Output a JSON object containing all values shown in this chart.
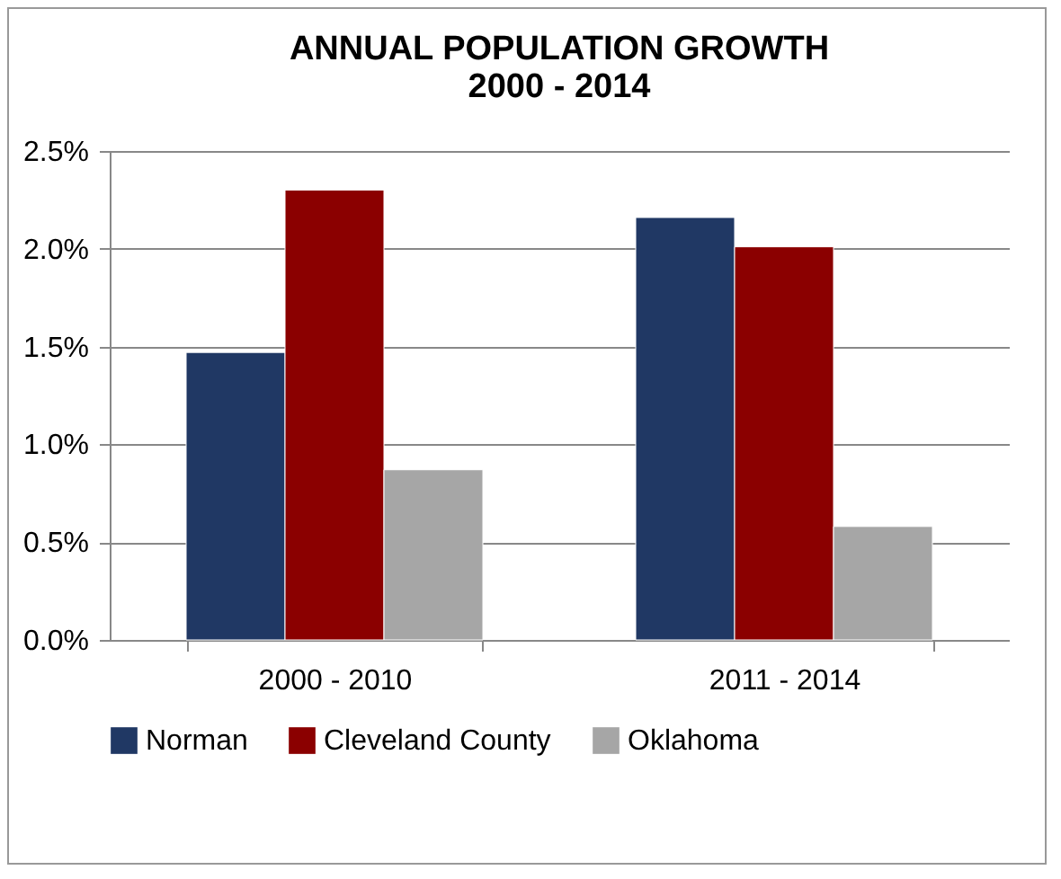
{
  "chart_data": {
    "type": "bar",
    "title": "ANNUAL POPULATION GROWTH\n2000 - 2014",
    "categories": [
      "2000 - 2010",
      "2011 - 2014"
    ],
    "series": [
      {
        "name": "Norman",
        "color": "#203864",
        "values": [
          1.47,
          2.16
        ]
      },
      {
        "name": "Cleveland County",
        "color": "#8b0000",
        "values": [
          2.3,
          2.01
        ]
      },
      {
        "name": "Oklahoma",
        "color": "#a6a6a6",
        "values": [
          0.87,
          0.58
        ]
      }
    ],
    "ylim": [
      0,
      2.5
    ],
    "yticks": [
      {
        "value": 0,
        "label": "0.0%"
      },
      {
        "value": 0.5,
        "label": "0.5%"
      },
      {
        "value": 1,
        "label": "1.0%"
      },
      {
        "value": 1.5,
        "label": "1.5%"
      },
      {
        "value": 2,
        "label": "2.0%"
      },
      {
        "value": 2.5,
        "label": "2.5%"
      }
    ],
    "grid": "y",
    "legend": "bottom"
  }
}
